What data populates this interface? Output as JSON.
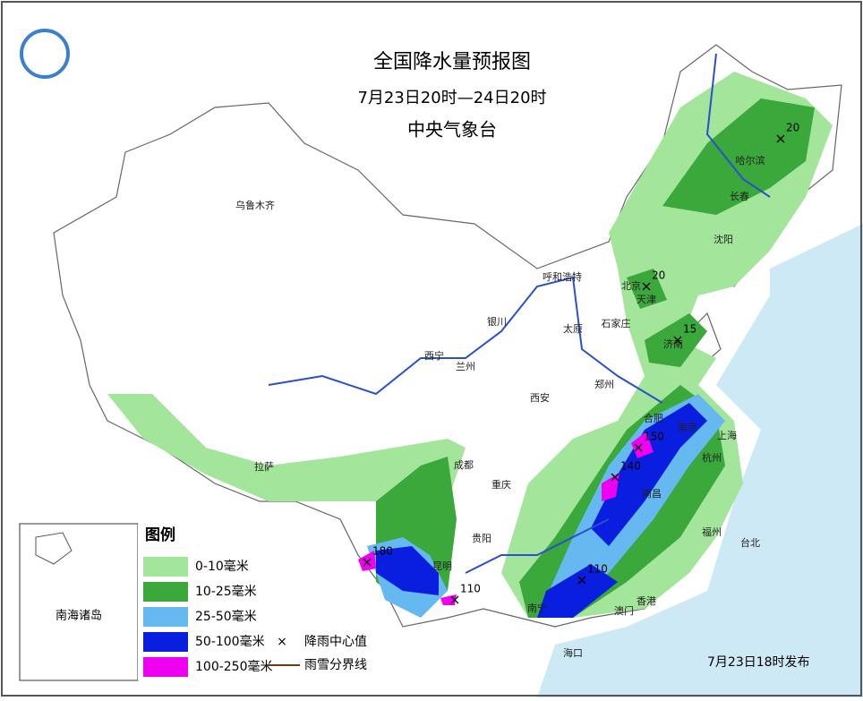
{
  "header": {
    "title": "全国降水量预报图",
    "period": "7月23日20时—24日20时",
    "issuer": "中央气象台"
  },
  "legend": {
    "title": "图例",
    "items": [
      {
        "label": "0-10毫米",
        "color": "#a3e59a"
      },
      {
        "label": "10-25毫米",
        "color": "#3aa83a"
      },
      {
        "label": "25-50毫米",
        "color": "#66b8f0"
      },
      {
        "label": "50-100毫米",
        "color": "#0a1ee0"
      },
      {
        "label": "100-250毫米",
        "color": "#f000f0"
      }
    ],
    "symbols": [
      {
        "label": "降雨中心值",
        "mark": "×"
      },
      {
        "label": "雨雪分界线"
      }
    ]
  },
  "cities": [
    "乌鲁木齐",
    "拉萨",
    "西宁",
    "兰州",
    "银川",
    "呼和浩特",
    "太原",
    "石家庄",
    "北京",
    "天津",
    "济南",
    "郑州",
    "西安",
    "成都",
    "重庆",
    "贵阳",
    "昆明",
    "南宁",
    "海口",
    "合肥",
    "南京",
    "上海",
    "杭州",
    "南昌",
    "福州",
    "台北",
    "香港",
    "澳门",
    "沈阳",
    "长春",
    "哈尔滨"
  ],
  "rain_centers": [
    "20",
    "20",
    "15",
    "150",
    "140",
    "110",
    "180",
    "110"
  ],
  "inset": {
    "label": "南海诸岛"
  },
  "footer": "7月23日18时发布"
}
